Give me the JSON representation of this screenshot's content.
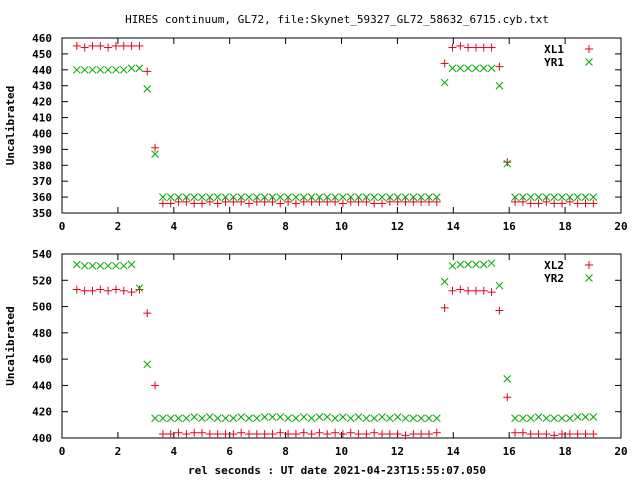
{
  "title": "HIRES continuum, GL72, file:Skynet_59327_GL72_58632_6715.cyb.txt",
  "xlabel": "rel seconds : UT date 2021-04-23T15:55:07.050",
  "colors": {
    "red_series": "#e8001c",
    "green_series": "#00a800",
    "frame": "#000000",
    "background": "#ffffff"
  },
  "chart_data": [
    {
      "type": "scatter",
      "ylabel": "Uncalibrated",
      "xlim": [
        0,
        20
      ],
      "ylim": [
        350,
        460
      ],
      "xticks": [
        0,
        2,
        4,
        6,
        8,
        10,
        12,
        14,
        16,
        18,
        20
      ],
      "yticks": [
        350,
        360,
        370,
        380,
        390,
        400,
        410,
        420,
        430,
        440,
        450,
        460
      ],
      "grid": false,
      "legend_position": "top-right",
      "series": [
        {
          "name": "XL1",
          "marker": "plus",
          "color": "#e8001c",
          "x": [
            0.53,
            0.81,
            1.09,
            1.37,
            1.65,
            1.93,
            2.21,
            2.49,
            2.77,
            3.05,
            3.33,
            3.61,
            3.89,
            4.17,
            4.45,
            4.73,
            5.01,
            5.29,
            5.57,
            5.85,
            6.13,
            6.41,
            6.69,
            6.97,
            7.25,
            7.53,
            7.81,
            8.09,
            8.37,
            8.65,
            8.93,
            9.21,
            9.49,
            9.77,
            10.05,
            10.33,
            10.61,
            10.89,
            11.17,
            11.45,
            11.73,
            12.01,
            12.29,
            12.57,
            12.85,
            13.13,
            13.41,
            13.69,
            13.97,
            14.25,
            14.53,
            14.81,
            15.09,
            15.37,
            15.65,
            15.93,
            16.21,
            16.49,
            16.77,
            17.05,
            17.33,
            17.61,
            17.89,
            18.17,
            18.45,
            18.73,
            19.01
          ],
          "y": [
            455,
            454,
            455,
            455,
            454,
            455,
            455,
            455,
            455,
            439,
            391,
            356,
            356,
            357,
            357,
            356,
            356,
            357,
            356,
            357,
            357,
            357,
            356,
            357,
            357,
            357,
            356,
            357,
            356,
            357,
            357,
            357,
            357,
            357,
            356,
            357,
            357,
            357,
            356,
            356,
            357,
            357,
            357,
            357,
            357,
            357,
            357,
            444,
            454,
            455,
            454,
            454,
            454,
            454,
            442,
            382,
            357,
            357,
            356,
            356,
            357,
            356,
            356,
            357,
            356,
            356,
            356
          ]
        },
        {
          "name": "YR1",
          "marker": "x",
          "color": "#00a800",
          "x": [
            0.53,
            0.81,
            1.09,
            1.37,
            1.65,
            1.93,
            2.21,
            2.49,
            2.77,
            3.05,
            3.33,
            3.61,
            3.89,
            4.17,
            4.45,
            4.73,
            5.01,
            5.29,
            5.57,
            5.85,
            6.13,
            6.41,
            6.69,
            6.97,
            7.25,
            7.53,
            7.81,
            8.09,
            8.37,
            8.65,
            8.93,
            9.21,
            9.49,
            9.77,
            10.05,
            10.33,
            10.61,
            10.89,
            11.17,
            11.45,
            11.73,
            12.01,
            12.29,
            12.57,
            12.85,
            13.13,
            13.41,
            13.69,
            13.97,
            14.25,
            14.53,
            14.81,
            15.09,
            15.37,
            15.65,
            15.93,
            16.21,
            16.49,
            16.77,
            17.05,
            17.33,
            17.61,
            17.89,
            18.17,
            18.45,
            18.73,
            19.01
          ],
          "y": [
            440,
            440,
            440,
            440,
            440,
            440,
            440,
            441,
            441,
            428,
            387,
            360,
            360,
            360,
            360,
            360,
            360,
            360,
            360,
            360,
            360,
            360,
            360,
            360,
            360,
            360,
            360,
            360,
            360,
            360,
            360,
            360,
            360,
            360,
            360,
            360,
            360,
            360,
            360,
            360,
            360,
            360,
            360,
            360,
            360,
            360,
            360,
            432,
            441,
            441,
            441,
            441,
            441,
            441,
            430,
            381,
            360,
            360,
            360,
            360,
            360,
            360,
            360,
            360,
            360,
            360,
            360
          ]
        }
      ]
    },
    {
      "type": "scatter",
      "ylabel": "Uncalibrated",
      "xlim": [
        0,
        20
      ],
      "ylim": [
        400,
        540
      ],
      "xticks": [
        0,
        2,
        4,
        6,
        8,
        10,
        12,
        14,
        16,
        18,
        20
      ],
      "yticks": [
        400,
        420,
        440,
        460,
        480,
        500,
        520,
        540
      ],
      "grid": false,
      "legend_position": "top-right",
      "series": [
        {
          "name": "XL2",
          "marker": "plus",
          "color": "#e8001c",
          "x": [
            0.53,
            0.81,
            1.09,
            1.37,
            1.65,
            1.93,
            2.21,
            2.49,
            2.77,
            3.05,
            3.33,
            3.61,
            3.89,
            4.17,
            4.45,
            4.73,
            5.01,
            5.29,
            5.57,
            5.85,
            6.13,
            6.41,
            6.69,
            6.97,
            7.25,
            7.53,
            7.81,
            8.09,
            8.37,
            8.65,
            8.93,
            9.21,
            9.49,
            9.77,
            10.05,
            10.33,
            10.61,
            10.89,
            11.17,
            11.45,
            11.73,
            12.01,
            12.29,
            12.57,
            12.85,
            13.13,
            13.41,
            13.69,
            13.97,
            14.25,
            14.53,
            14.81,
            15.09,
            15.37,
            15.65,
            15.93,
            16.21,
            16.49,
            16.77,
            17.05,
            17.33,
            17.61,
            17.89,
            18.17,
            18.45,
            18.73,
            19.01
          ],
          "y": [
            513,
            512,
            512,
            513,
            512,
            513,
            512,
            511,
            513,
            495,
            440,
            403,
            403,
            404,
            403,
            404,
            404,
            403,
            403,
            403,
            403,
            404,
            403,
            403,
            403,
            403,
            404,
            403,
            403,
            404,
            403,
            404,
            403,
            404,
            403,
            404,
            403,
            403,
            404,
            403,
            403,
            403,
            402,
            403,
            403,
            403,
            404,
            499,
            512,
            513,
            512,
            512,
            512,
            511,
            497,
            431,
            404,
            404,
            403,
            403,
            403,
            402,
            403,
            403,
            403,
            403,
            403
          ]
        },
        {
          "name": "YR2",
          "marker": "x",
          "color": "#00a800",
          "x": [
            0.53,
            0.81,
            1.09,
            1.37,
            1.65,
            1.93,
            2.21,
            2.49,
            2.77,
            3.05,
            3.33,
            3.61,
            3.89,
            4.17,
            4.45,
            4.73,
            5.01,
            5.29,
            5.57,
            5.85,
            6.13,
            6.41,
            6.69,
            6.97,
            7.25,
            7.53,
            7.81,
            8.09,
            8.37,
            8.65,
            8.93,
            9.21,
            9.49,
            9.77,
            10.05,
            10.33,
            10.61,
            10.89,
            11.17,
            11.45,
            11.73,
            12.01,
            12.29,
            12.57,
            12.85,
            13.13,
            13.41,
            13.69,
            13.97,
            14.25,
            14.53,
            14.81,
            15.09,
            15.37,
            15.65,
            15.93,
            16.21,
            16.49,
            16.77,
            17.05,
            17.33,
            17.61,
            17.89,
            18.17,
            18.45,
            18.73,
            19.01
          ],
          "y": [
            532,
            531,
            531,
            531,
            531,
            531,
            531,
            532,
            514,
            456,
            415,
            415,
            415,
            415,
            415,
            416,
            415,
            416,
            415,
            415,
            415,
            416,
            415,
            415,
            416,
            416,
            416,
            415,
            415,
            416,
            415,
            416,
            416,
            415,
            416,
            415,
            416,
            415,
            415,
            416,
            415,
            416,
            415,
            415,
            415,
            415,
            415,
            519,
            531,
            532,
            532,
            532,
            532,
            533,
            516,
            445,
            415,
            415,
            415,
            416,
            415,
            415,
            415,
            415,
            416,
            416,
            416
          ]
        }
      ]
    }
  ]
}
